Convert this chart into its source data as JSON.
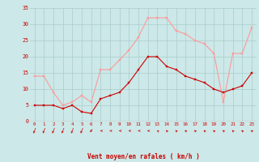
{
  "hours": [
    0,
    1,
    2,
    3,
    4,
    5,
    6,
    7,
    8,
    9,
    10,
    11,
    12,
    13,
    14,
    15,
    16,
    17,
    18,
    19,
    20,
    21,
    22,
    23
  ],
  "vent_moyen": [
    5,
    5,
    5,
    4,
    5,
    3,
    2.5,
    7,
    8,
    9,
    12,
    16,
    20,
    20,
    17,
    16,
    14,
    13,
    12,
    10,
    9,
    10,
    11,
    15
  ],
  "rafales": [
    14,
    14,
    9,
    5,
    6,
    8,
    6,
    16,
    16,
    19,
    22,
    26,
    32,
    32,
    32,
    28,
    27,
    25,
    24,
    21,
    6,
    21,
    21,
    29
  ],
  "bg_color": "#cce8e8",
  "grid_color": "#aacccc",
  "line_color_moyen": "#cc0000",
  "line_color_rafales": "#ff9999",
  "xlabel": "Vent moyen/en rafales ( km/h )",
  "xlabel_color": "#cc0000",
  "tick_color": "#cc0000",
  "ylim": [
    0,
    35
  ],
  "yticks": [
    0,
    5,
    10,
    15,
    20,
    25,
    30,
    35
  ],
  "arrow_color": "#cc0000",
  "arrow_angles": [
    225,
    225,
    225,
    225,
    225,
    225,
    210,
    180,
    180,
    180,
    180,
    180,
    180,
    170,
    160,
    160,
    160,
    160,
    160,
    160,
    160,
    160,
    160,
    160
  ]
}
